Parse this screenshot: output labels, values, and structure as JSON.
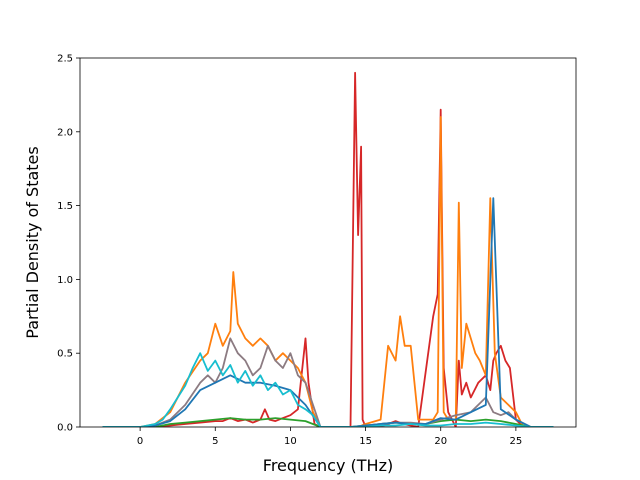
{
  "chart_data": {
    "type": "line",
    "title": "",
    "xlabel": "Frequency (THz)",
    "ylabel": "Partial Density of States",
    "xlim": [
      -4.0,
      29.0
    ],
    "ylim": [
      0.0,
      2.5
    ],
    "xticks": [
      0,
      5,
      10,
      15,
      20,
      25
    ],
    "xtick_labels": [
      "0",
      "5",
      "10",
      "15",
      "20",
      "25"
    ],
    "yticks": [
      0.0,
      0.5,
      1.0,
      1.5,
      2.0,
      2.5
    ],
    "ytick_labels": [
      "0.0",
      "0.5",
      "1.0",
      "1.5",
      "2.0",
      "2.5"
    ],
    "grid": false,
    "legend": "none",
    "series": [
      {
        "color": "#d62728",
        "x": [
          -2.5,
          0,
          1,
          2,
          3,
          4,
          5,
          5.5,
          6,
          6.5,
          7,
          7.5,
          8,
          8.3,
          8.6,
          9,
          9.5,
          10,
          10.5,
          11,
          11.2,
          11.6,
          12,
          14,
          14.3,
          14.5,
          14.7,
          14.8,
          15.0,
          15.2,
          16,
          16.5,
          17,
          17.5,
          18,
          18.5,
          19.5,
          19.8,
          20.0,
          20.2,
          20.5,
          21,
          21.2,
          21.4,
          21.7,
          22,
          22.5,
          23,
          23.3,
          23.5,
          23.7,
          24,
          24.3,
          24.6,
          25,
          25.5,
          27.5
        ],
        "y": [
          0,
          0,
          0,
          0.01,
          0.02,
          0.03,
          0.04,
          0.04,
          0.06,
          0.04,
          0.05,
          0.03,
          0.05,
          0.12,
          0.05,
          0.04,
          0.06,
          0.08,
          0.12,
          0.6,
          0.3,
          0.02,
          0,
          0,
          2.4,
          1.3,
          1.9,
          0.05,
          0,
          0,
          0,
          0.02,
          0.04,
          0.02,
          0.01,
          0,
          0.75,
          0.9,
          2.15,
          0.4,
          0.1,
          0,
          0.45,
          0.22,
          0.3,
          0.2,
          0.3,
          0.35,
          0.25,
          0.45,
          0.5,
          0.55,
          0.45,
          0.4,
          0.05,
          0,
          0
        ]
      },
      {
        "color": "#ff7f0e",
        "x": [
          -2.5,
          0,
          1,
          2,
          3,
          4,
          4.5,
          5,
          5.5,
          6,
          6.2,
          6.5,
          7,
          7.5,
          8,
          8.5,
          9,
          9.5,
          10,
          10.5,
          11,
          11.5,
          12,
          14.5,
          15,
          16,
          16.5,
          17,
          17.3,
          17.6,
          18,
          18.5,
          19.5,
          19.8,
          20.0,
          20.2,
          20.5,
          21,
          21.2,
          21.4,
          21.7,
          22,
          22.3,
          22.6,
          23,
          23.3,
          23.6,
          24,
          24.5,
          25,
          25.5,
          27.5
        ],
        "y": [
          0,
          0,
          0.02,
          0.1,
          0.3,
          0.45,
          0.5,
          0.7,
          0.55,
          0.65,
          1.05,
          0.7,
          0.6,
          0.55,
          0.6,
          0.55,
          0.45,
          0.5,
          0.45,
          0.4,
          0.3,
          0.1,
          0,
          0,
          0.02,
          0.05,
          0.55,
          0.45,
          0.75,
          0.55,
          0.55,
          0.05,
          0.05,
          0.1,
          2.1,
          0.1,
          0.05,
          0.05,
          1.52,
          0.4,
          0.7,
          0.6,
          0.5,
          0.45,
          0.35,
          1.55,
          0.5,
          0.2,
          0.15,
          0.1,
          0,
          0
        ]
      },
      {
        "color": "#2ca02c",
        "x": [
          -2.5,
          0,
          1,
          2,
          3,
          4,
          5,
          6,
          7,
          8,
          9,
          10,
          11,
          12,
          14,
          15,
          16,
          17,
          18,
          19,
          20,
          21,
          22,
          23,
          24,
          25,
          26,
          27.5
        ],
        "y": [
          0,
          0,
          0,
          0.02,
          0.03,
          0.04,
          0.05,
          0.06,
          0.05,
          0.05,
          0.06,
          0.05,
          0.04,
          0,
          0,
          0.01,
          0.02,
          0.03,
          0.02,
          0.02,
          0.04,
          0.05,
          0.04,
          0.05,
          0.04,
          0.02,
          0,
          0
        ]
      },
      {
        "color": "#8c7b82",
        "x": [
          -2.5,
          0,
          1,
          2,
          3,
          4,
          4.5,
          5,
          5.5,
          6,
          6.5,
          7,
          7.5,
          8,
          8.5,
          9,
          9.5,
          10,
          10.5,
          11,
          11.5,
          12,
          14,
          15,
          16,
          17,
          18,
          19,
          20,
          21,
          22,
          23,
          23.5,
          24,
          24.5,
          25,
          26,
          27.5
        ],
        "y": [
          0,
          0,
          0.01,
          0.05,
          0.15,
          0.3,
          0.35,
          0.3,
          0.4,
          0.6,
          0.5,
          0.45,
          0.35,
          0.4,
          0.55,
          0.45,
          0.4,
          0.5,
          0.35,
          0.3,
          0.15,
          0,
          0,
          0.01,
          0.02,
          0.03,
          0.03,
          0.02,
          0.05,
          0.08,
          0.1,
          0.2,
          0.1,
          0.08,
          0.1,
          0.05,
          0,
          0
        ]
      },
      {
        "color": "#1f77b4",
        "x": [
          -2.5,
          0,
          1,
          2,
          3,
          4,
          5,
          6,
          7,
          8,
          9,
          10,
          11,
          12,
          14,
          15,
          16,
          17,
          18,
          19,
          20,
          21,
          22,
          23,
          23.5,
          24,
          25,
          26,
          27.5
        ],
        "y": [
          0,
          0,
          0.01,
          0.04,
          0.12,
          0.25,
          0.3,
          0.35,
          0.3,
          0.3,
          0.28,
          0.25,
          0.15,
          0,
          0,
          0.01,
          0.02,
          0.03,
          0.02,
          0.02,
          0.06,
          0.05,
          0.1,
          0.15,
          1.55,
          0.12,
          0.05,
          0,
          0
        ]
      },
      {
        "color": "#17becf",
        "x": [
          -2.5,
          0,
          1,
          1.5,
          2,
          2.5,
          3,
          3.5,
          4,
          4.5,
          5,
          5.5,
          6,
          6.5,
          7,
          7.5,
          8,
          8.5,
          9,
          9.5,
          10,
          10.5,
          11,
          11.5,
          12,
          14,
          15,
          16,
          17,
          18,
          19,
          20,
          21,
          22,
          23,
          24,
          25,
          26,
          27.5
        ],
        "y": [
          0,
          0,
          0.02,
          0.05,
          0.12,
          0.2,
          0.28,
          0.4,
          0.5,
          0.38,
          0.45,
          0.35,
          0.42,
          0.3,
          0.38,
          0.28,
          0.35,
          0.25,
          0.3,
          0.22,
          0.25,
          0.15,
          0.12,
          0.08,
          0,
          0,
          0,
          0.01,
          0.01,
          0.02,
          0.01,
          0.01,
          0.02,
          0.02,
          0.03,
          0.02,
          0.01,
          0,
          0
        ]
      }
    ]
  }
}
